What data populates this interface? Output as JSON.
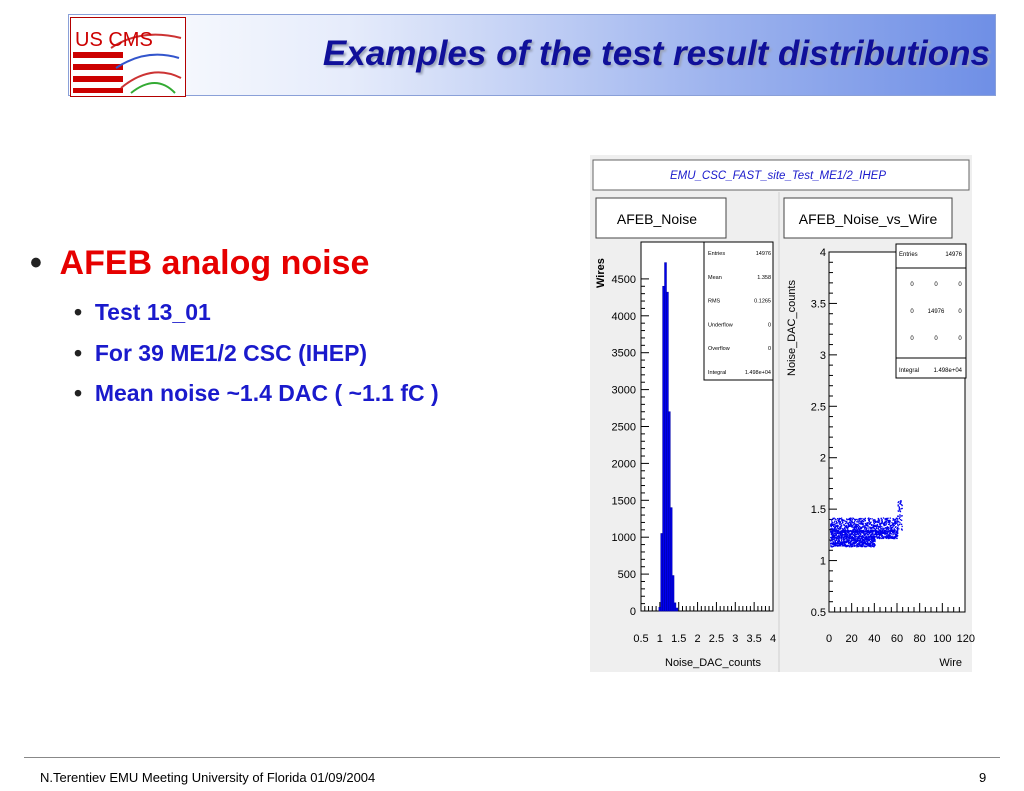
{
  "slide": {
    "logo_text": "US CMS",
    "title": "Examples of the test result distributions",
    "bullets": {
      "main": "AFEB analog noise",
      "sub": [
        "Test 13_01",
        "For 39 ME1/2 CSC (IHEP)",
        "Mean noise  ~1.4 DAC ( ~1.1 fC )"
      ]
    },
    "footer": {
      "left": "N.Terentiev EMU Meeting  University of Florida   01/09/2004",
      "page": "9"
    }
  },
  "colors": {
    "title": "#10109a",
    "main_bullet": "#e60000",
    "sub_bullet": "#1a1acc",
    "data": "#0000ee"
  },
  "canvas": {
    "header": "EMU_CSC_FAST_site_Test_ME1/2_IHEP"
  },
  "chart_data": [
    {
      "type": "bar",
      "title": "AFEB_Noise",
      "xlabel": "Noise_DAC_counts",
      "ylabel": "Wires",
      "xlim": [
        0.5,
        4
      ],
      "ylim": [
        0,
        5000
      ],
      "xticks": [
        "0.5",
        "1",
        "1.5",
        "2",
        "2.5",
        "3",
        "3.5",
        "4"
      ],
      "yticks": [
        "0",
        "500",
        "1000",
        "1500",
        "2000",
        "2500",
        "3000",
        "3500",
        "4000",
        "4500"
      ],
      "bin_width": 0.05,
      "bins": [
        {
          "x": 1.0,
          "y": 50
        },
        {
          "x": 1.05,
          "y": 1050
        },
        {
          "x": 1.1,
          "y": 4400
        },
        {
          "x": 1.15,
          "y": 4720
        },
        {
          "x": 1.2,
          "y": 4320
        },
        {
          "x": 1.25,
          "y": 2700
        },
        {
          "x": 1.3,
          "y": 1400
        },
        {
          "x": 1.35,
          "y": 480
        },
        {
          "x": 1.4,
          "y": 110
        },
        {
          "x": 1.45,
          "y": 40
        }
      ],
      "stats": [
        {
          "label": "Entries",
          "value": "14976"
        },
        {
          "label": "Mean",
          "value": "1.358"
        },
        {
          "label": "RMS",
          "value": "0.1265"
        },
        {
          "label": "Underflow",
          "value": "0"
        },
        {
          "label": "Overflow",
          "value": "0"
        },
        {
          "label": "Integral",
          "value": "1.498e+04"
        }
      ]
    },
    {
      "type": "scatter",
      "title": "AFEB_Noise_vs_Wire",
      "xlabel": "Wire",
      "ylabel": "Noise_DAC_counts",
      "xlim": [
        0,
        120
      ],
      "ylim": [
        0.5,
        4
      ],
      "xticks": [
        "0",
        "20",
        "40",
        "60",
        "80",
        "100",
        "120"
      ],
      "yticks": [
        "0.5",
        "1",
        "1.5",
        "2",
        "2.5",
        "3",
        "3.5",
        "4"
      ],
      "bands": [
        {
          "x_from": 1,
          "x_to": 60,
          "y_center": 1.35,
          "y_spread": 0.07
        },
        {
          "x_from": 1,
          "x_to": 60,
          "y_center": 1.26,
          "y_spread": 0.04
        },
        {
          "x_from": 1,
          "x_to": 40,
          "y_center": 1.18,
          "y_spread": 0.04
        },
        {
          "x_from": 60,
          "x_to": 64,
          "y_center": 1.45,
          "y_spread": 0.15
        }
      ],
      "stats": {
        "entries_label": "Entries",
        "entries_value": "14976",
        "grid": [
          [
            "0",
            "0",
            "0"
          ],
          [
            "0",
            "14976",
            "0"
          ],
          [
            "0",
            "0",
            "0"
          ]
        ],
        "integral_label": "Integral",
        "integral_value": "1.498e+04"
      }
    }
  ]
}
